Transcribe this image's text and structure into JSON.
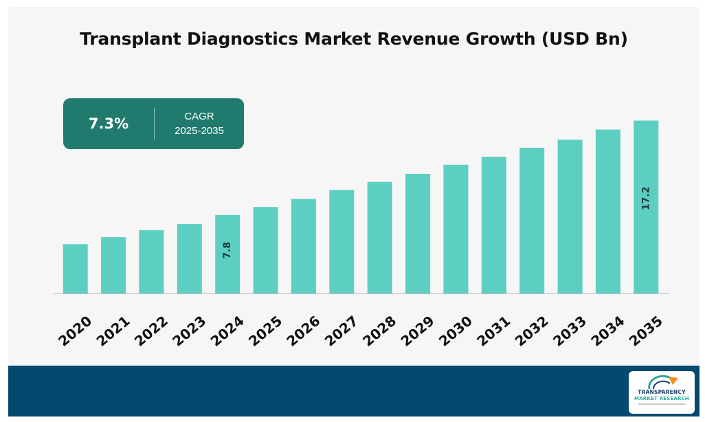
{
  "chart_data": {
    "type": "bar",
    "title": "Transplant Diagnostics Market Revenue Growth (USD Bn)",
    "categories": [
      "2020",
      "2021",
      "2022",
      "2023",
      "2024",
      "2025",
      "2026",
      "2027",
      "2028",
      "2029",
      "2030",
      "2031",
      "2032",
      "2033",
      "2034",
      "2035"
    ],
    "values": [
      4.9,
      5.6,
      6.3,
      6.9,
      7.8,
      8.6,
      9.4,
      10.3,
      11.1,
      11.9,
      12.8,
      13.6,
      14.5,
      15.3,
      16.3,
      17.2
    ],
    "data_labels": [
      {
        "category": "2024",
        "label": "7.8"
      },
      {
        "category": "2035",
        "label": "17.2"
      }
    ],
    "xlabel": "",
    "ylabel": "",
    "ylim": [
      0,
      18.6
    ],
    "grid": false,
    "legend": "none",
    "bar_color": "#5ccfc2"
  },
  "cagr": {
    "value": "7.3%",
    "label": "CAGR",
    "period": "2025-2035",
    "box_color": "#207a6d"
  },
  "footer": {
    "band_color": "#034a6e",
    "logo": {
      "icon": "arrow-arc-logo-icon",
      "line1": "TRANSPARENCY",
      "line2": "MARKET RESEARCH"
    }
  }
}
